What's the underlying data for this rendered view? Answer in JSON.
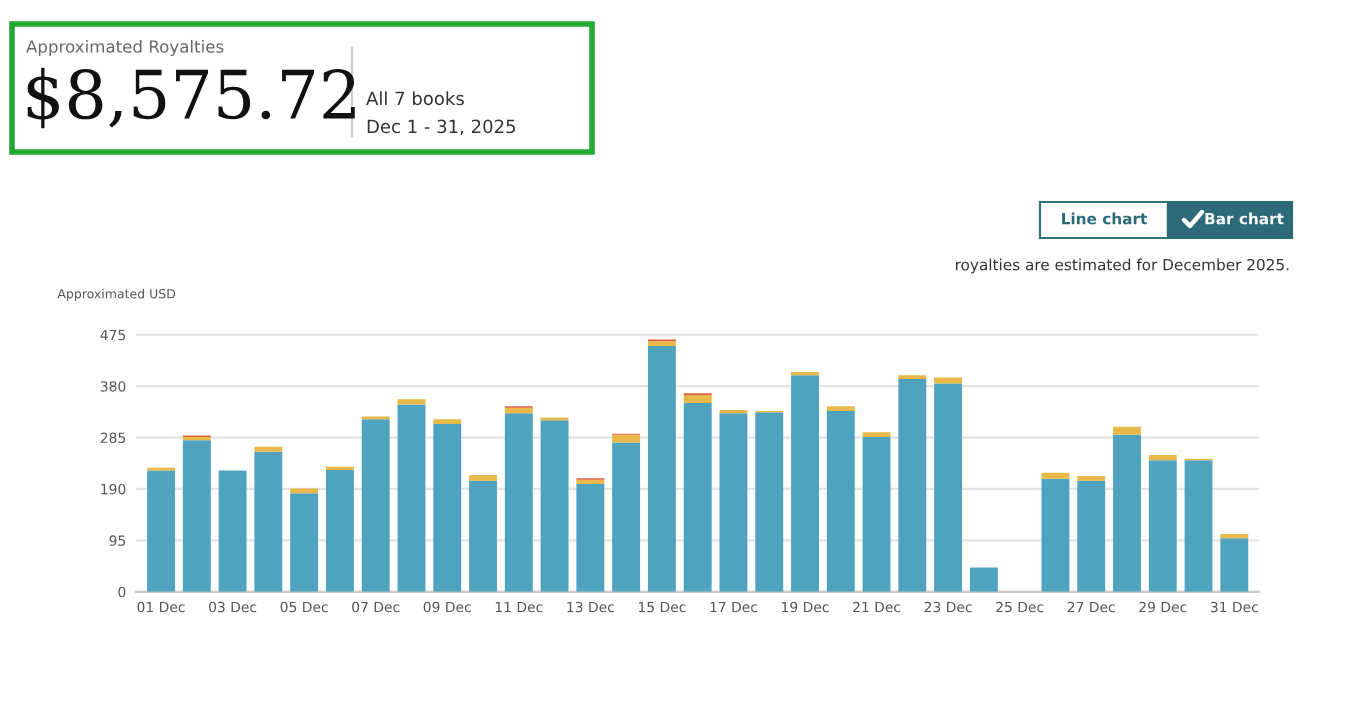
{
  "chart_data": {
    "type": "bar",
    "stacked": true,
    "ylabel": "Approximated USD",
    "categories": [
      "01 Dec",
      null,
      "03 Dec",
      null,
      "05 Dec",
      null,
      "07 Dec",
      null,
      "09 Dec",
      null,
      "11 Dec",
      null,
      "13 Dec",
      null,
      "15 Dec",
      null,
      "17 Dec",
      null,
      "19 Dec",
      null,
      "21 Dec",
      null,
      "23 Dec",
      null,
      "25 Dec",
      null,
      "27 Dec",
      null,
      "29 Dec",
      null,
      "31 Dec"
    ],
    "series": [
      {
        "color": "#4fa3bf",
        "values": [
          224,
          280,
          224,
          259,
          182,
          225,
          319,
          346,
          310,
          205,
          330,
          317,
          199,
          276,
          454,
          349,
          330,
          332,
          400,
          334,
          286,
          393,
          385,
          45,
          0,
          209,
          205,
          290,
          243,
          243,
          99
        ]
      },
      {
        "color": "#e8b84a",
        "values": [
          5,
          6,
          0,
          9,
          9,
          6,
          5,
          10,
          9,
          11,
          10,
          5,
          8,
          14,
          9,
          14,
          6,
          2,
          6,
          9,
          9,
          7,
          11,
          0,
          0,
          11,
          9,
          15,
          10,
          3,
          8
        ]
      },
      {
        "color": "#d9603b",
        "values": [
          0,
          3,
          0,
          0,
          0,
          0,
          0,
          0,
          0,
          0,
          3,
          0,
          3,
          2,
          3,
          4,
          0,
          0,
          0,
          0,
          0,
          0,
          0,
          0,
          0,
          0,
          0,
          0,
          0,
          0,
          0
        ]
      }
    ],
    "ylim": [
      0,
      480
    ],
    "yticks": [
      0,
      95,
      190,
      285,
      380,
      475
    ],
    "grid": "y",
    "legend": false,
    "annotations": [
      "Approximated Royalties",
      "$8,575.72",
      "All 7 books",
      "Dec 1 - 31, 2025",
      "Line chart",
      "Bar chart",
      "royalties are estimated for December 2025."
    ]
  }
}
